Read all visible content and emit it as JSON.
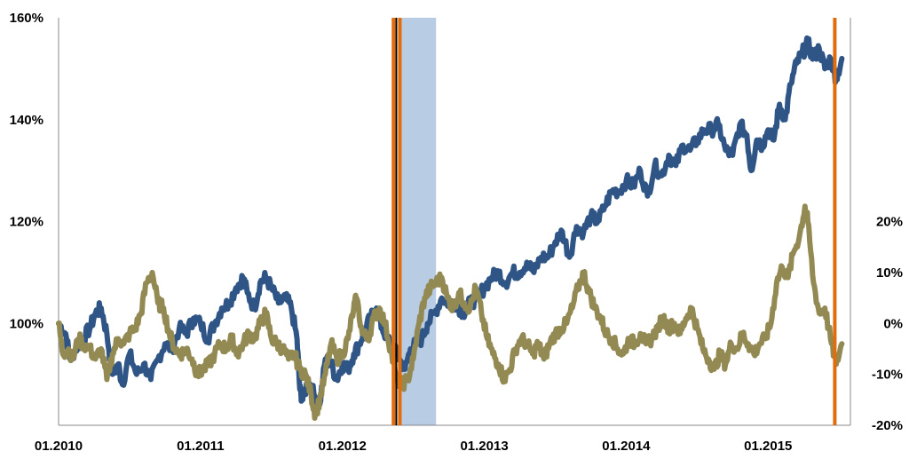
{
  "chart_data": {
    "type": "line",
    "x_tick_labels": [
      "01.2010",
      "01.2011",
      "01.2012",
      "01.2013",
      "01.2014",
      "01.2015"
    ],
    "x_range": [
      2010.0,
      2015.58
    ],
    "left_axis": {
      "tick_labels": [
        "100%",
        "120%",
        "140%",
        "160%"
      ],
      "tick_values": [
        100,
        120,
        140,
        160
      ],
      "range": [
        80,
        160
      ]
    },
    "right_axis": {
      "tick_labels": [
        "-20%",
        "-10%",
        "0%",
        "10%",
        "20%"
      ],
      "tick_values": [
        -20,
        -10,
        0,
        10,
        20
      ],
      "range": [
        -20,
        60
      ]
    },
    "grid": false,
    "legend": "none",
    "highlights": {
      "shaded_band": {
        "from": 2012.4,
        "to": 2012.66,
        "color": "#b8cce4"
      },
      "lines": [
        {
          "x": 2012.36,
          "color": "#e36c0a"
        },
        {
          "x": 2012.38,
          "color": "#000000"
        },
        {
          "x": 2012.405,
          "color": "#e36c0a"
        },
        {
          "x": 2015.47,
          "color": "#e36c0a"
        }
      ]
    },
    "series": [
      {
        "axis": "left",
        "color": "#2e5585",
        "points": [
          [
            2010.0,
            100
          ],
          [
            2010.05,
            98
          ],
          [
            2010.08,
            93
          ],
          [
            2010.12,
            95
          ],
          [
            2010.17,
            97
          ],
          [
            2010.22,
            99
          ],
          [
            2010.26,
            102
          ],
          [
            2010.3,
            103
          ],
          [
            2010.34,
            98
          ],
          [
            2010.38,
            90
          ],
          [
            2010.42,
            92
          ],
          [
            2010.45,
            88
          ],
          [
            2010.5,
            94
          ],
          [
            2010.55,
            90
          ],
          [
            2010.6,
            92
          ],
          [
            2010.65,
            89
          ],
          [
            2010.7,
            93
          ],
          [
            2010.75,
            96
          ],
          [
            2010.8,
            95
          ],
          [
            2010.85,
            99
          ],
          [
            2010.9,
            98
          ],
          [
            2010.95,
            101
          ],
          [
            2011.0,
            100
          ],
          [
            2011.05,
            97
          ],
          [
            2011.1,
            100
          ],
          [
            2011.15,
            103
          ],
          [
            2011.2,
            104
          ],
          [
            2011.25,
            107
          ],
          [
            2011.3,
            109
          ],
          [
            2011.33,
            106
          ],
          [
            2011.38,
            103
          ],
          [
            2011.42,
            108
          ],
          [
            2011.46,
            109
          ],
          [
            2011.5,
            107
          ],
          [
            2011.55,
            104
          ],
          [
            2011.6,
            105
          ],
          [
            2011.64,
            103
          ],
          [
            2011.68,
            97
          ],
          [
            2011.7,
            87
          ],
          [
            2011.72,
            85
          ],
          [
            2011.76,
            89
          ],
          [
            2011.8,
            86
          ],
          [
            2011.84,
            84
          ],
          [
            2011.88,
            93
          ],
          [
            2011.92,
            92
          ],
          [
            2011.96,
            89
          ],
          [
            2012.0,
            92
          ],
          [
            2012.04,
            91
          ],
          [
            2012.08,
            94
          ],
          [
            2012.12,
            96
          ],
          [
            2012.16,
            99
          ],
          [
            2012.2,
            101
          ],
          [
            2012.24,
            103
          ],
          [
            2012.28,
            99
          ],
          [
            2012.32,
            97
          ],
          [
            2012.36,
            95
          ],
          [
            2012.4,
            93
          ],
          [
            2012.44,
            91
          ],
          [
            2012.48,
            95
          ],
          [
            2012.52,
            96
          ],
          [
            2012.56,
            97
          ],
          [
            2012.6,
            100
          ],
          [
            2012.65,
            102
          ],
          [
            2012.7,
            105
          ],
          [
            2012.75,
            104
          ],
          [
            2012.8,
            104
          ],
          [
            2012.85,
            102
          ],
          [
            2012.9,
            104
          ],
          [
            2012.95,
            105
          ],
          [
            2013.0,
            107
          ],
          [
            2013.05,
            109
          ],
          [
            2013.1,
            110
          ],
          [
            2013.15,
            108
          ],
          [
            2013.2,
            110
          ],
          [
            2013.25,
            110
          ],
          [
            2013.3,
            112
          ],
          [
            2013.35,
            110
          ],
          [
            2013.4,
            113
          ],
          [
            2013.45,
            113
          ],
          [
            2013.5,
            116
          ],
          [
            2013.55,
            118
          ],
          [
            2013.6,
            113
          ],
          [
            2013.65,
            119
          ],
          [
            2013.7,
            118
          ],
          [
            2013.75,
            121
          ],
          [
            2013.8,
            120
          ],
          [
            2013.85,
            123
          ],
          [
            2013.9,
            126
          ],
          [
            2013.95,
            126
          ],
          [
            2014.0,
            128
          ],
          [
            2014.05,
            127
          ],
          [
            2014.1,
            130
          ],
          [
            2014.15,
            125
          ],
          [
            2014.2,
            131
          ],
          [
            2014.25,
            129
          ],
          [
            2014.3,
            133
          ],
          [
            2014.35,
            131
          ],
          [
            2014.4,
            135
          ],
          [
            2014.45,
            134
          ],
          [
            2014.5,
            136
          ],
          [
            2014.55,
            138
          ],
          [
            2014.6,
            138
          ],
          [
            2014.65,
            139
          ],
          [
            2014.7,
            134
          ],
          [
            2014.75,
            133
          ],
          [
            2014.8,
            139
          ],
          [
            2014.85,
            137
          ],
          [
            2014.88,
            130
          ],
          [
            2014.92,
            136
          ],
          [
            2014.96,
            135
          ],
          [
            2015.0,
            138
          ],
          [
            2015.04,
            136
          ],
          [
            2015.08,
            143
          ],
          [
            2015.12,
            140
          ],
          [
            2015.16,
            147
          ],
          [
            2015.2,
            151
          ],
          [
            2015.24,
            153
          ],
          [
            2015.28,
            155
          ],
          [
            2015.32,
            152
          ],
          [
            2015.36,
            154
          ],
          [
            2015.4,
            150
          ],
          [
            2015.44,
            152
          ],
          [
            2015.48,
            148
          ],
          [
            2015.52,
            152
          ]
        ]
      },
      {
        "axis": "right",
        "color": "#938953",
        "points": [
          [
            2010.0,
            0
          ],
          [
            2010.03,
            -6
          ],
          [
            2010.07,
            -5
          ],
          [
            2010.1,
            -7
          ],
          [
            2010.14,
            -3
          ],
          [
            2010.17,
            -4
          ],
          [
            2010.22,
            -5
          ],
          [
            2010.26,
            -7
          ],
          [
            2010.3,
            -5
          ],
          [
            2010.34,
            -11
          ],
          [
            2010.38,
            -6
          ],
          [
            2010.42,
            -3
          ],
          [
            2010.46,
            -4
          ],
          [
            2010.5,
            -2
          ],
          [
            2010.54,
            -1
          ],
          [
            2010.58,
            2
          ],
          [
            2010.62,
            8
          ],
          [
            2010.66,
            10
          ],
          [
            2010.7,
            4
          ],
          [
            2010.74,
            3
          ],
          [
            2010.78,
            -2
          ],
          [
            2010.82,
            -5
          ],
          [
            2010.86,
            -6
          ],
          [
            2010.9,
            -5
          ],
          [
            2010.94,
            -7
          ],
          [
            2010.98,
            -10
          ],
          [
            2011.02,
            -9
          ],
          [
            2011.06,
            -8
          ],
          [
            2011.1,
            -6
          ],
          [
            2011.14,
            -4
          ],
          [
            2011.18,
            -5
          ],
          [
            2011.22,
            -3
          ],
          [
            2011.26,
            -6
          ],
          [
            2011.3,
            -4
          ],
          [
            2011.34,
            -2
          ],
          [
            2011.38,
            -3
          ],
          [
            2011.42,
            0
          ],
          [
            2011.46,
            2
          ],
          [
            2011.5,
            -3
          ],
          [
            2011.54,
            -4
          ],
          [
            2011.58,
            -5
          ],
          [
            2011.62,
            -7
          ],
          [
            2011.66,
            -6
          ],
          [
            2011.7,
            -9
          ],
          [
            2011.74,
            -10
          ],
          [
            2011.78,
            -14
          ],
          [
            2011.81,
            -18
          ],
          [
            2011.84,
            -15
          ],
          [
            2011.88,
            -10
          ],
          [
            2011.92,
            -4
          ],
          [
            2011.96,
            -7
          ],
          [
            2012.0,
            -6
          ],
          [
            2012.04,
            -3
          ],
          [
            2012.08,
            3
          ],
          [
            2012.1,
            5
          ],
          [
            2012.14,
            -2
          ],
          [
            2012.18,
            -3
          ],
          [
            2012.22,
            1
          ],
          [
            2012.26,
            3
          ],
          [
            2012.3,
            0
          ],
          [
            2012.34,
            -5
          ],
          [
            2012.38,
            -11
          ],
          [
            2012.42,
            -12
          ],
          [
            2012.46,
            -11
          ],
          [
            2012.5,
            -7
          ],
          [
            2012.54,
            0
          ],
          [
            2012.58,
            5
          ],
          [
            2012.62,
            7
          ],
          [
            2012.66,
            8
          ],
          [
            2012.7,
            9
          ],
          [
            2012.74,
            5
          ],
          [
            2012.78,
            3
          ],
          [
            2012.82,
            6
          ],
          [
            2012.86,
            4
          ],
          [
            2012.9,
            3
          ],
          [
            2012.94,
            7
          ],
          [
            2012.98,
            2
          ],
          [
            2013.02,
            -3
          ],
          [
            2013.06,
            -6
          ],
          [
            2013.1,
            -8
          ],
          [
            2013.14,
            -11
          ],
          [
            2013.18,
            -9
          ],
          [
            2013.22,
            -5
          ],
          [
            2013.26,
            -3
          ],
          [
            2013.3,
            -4
          ],
          [
            2013.34,
            -6
          ],
          [
            2013.38,
            -4
          ],
          [
            2013.42,
            -7
          ],
          [
            2013.46,
            -4
          ],
          [
            2013.5,
            -2
          ],
          [
            2013.54,
            -1
          ],
          [
            2013.58,
            0
          ],
          [
            2013.62,
            3
          ],
          [
            2013.66,
            7
          ],
          [
            2013.7,
            10
          ],
          [
            2013.74,
            6
          ],
          [
            2013.78,
            3
          ],
          [
            2013.82,
            1
          ],
          [
            2013.86,
            -2
          ],
          [
            2013.9,
            -3
          ],
          [
            2013.94,
            -5
          ],
          [
            2013.98,
            -6
          ],
          [
            2014.02,
            -3
          ],
          [
            2014.06,
            -4
          ],
          [
            2014.1,
            -2
          ],
          [
            2014.14,
            -4
          ],
          [
            2014.18,
            -3
          ],
          [
            2014.22,
            -1
          ],
          [
            2014.26,
            1
          ],
          [
            2014.3,
            -1
          ],
          [
            2014.34,
            0
          ],
          [
            2014.38,
            -2
          ],
          [
            2014.42,
            1
          ],
          [
            2014.46,
            3
          ],
          [
            2014.5,
            -1
          ],
          [
            2014.54,
            -5
          ],
          [
            2014.58,
            -7
          ],
          [
            2014.62,
            -9
          ],
          [
            2014.66,
            -6
          ],
          [
            2014.7,
            -8
          ],
          [
            2014.74,
            -4
          ],
          [
            2014.78,
            -5
          ],
          [
            2014.82,
            -2
          ],
          [
            2014.86,
            -4
          ],
          [
            2014.9,
            -6
          ],
          [
            2014.94,
            -4
          ],
          [
            2014.98,
            -3
          ],
          [
            2015.02,
            0
          ],
          [
            2015.06,
            8
          ],
          [
            2015.1,
            11
          ],
          [
            2015.14,
            9
          ],
          [
            2015.18,
            14
          ],
          [
            2015.22,
            17
          ],
          [
            2015.26,
            23
          ],
          [
            2015.28,
            20
          ],
          [
            2015.32,
            8
          ],
          [
            2015.36,
            2
          ],
          [
            2015.4,
            3
          ],
          [
            2015.44,
            -3
          ],
          [
            2015.48,
            -8
          ],
          [
            2015.52,
            -4
          ]
        ]
      }
    ]
  }
}
